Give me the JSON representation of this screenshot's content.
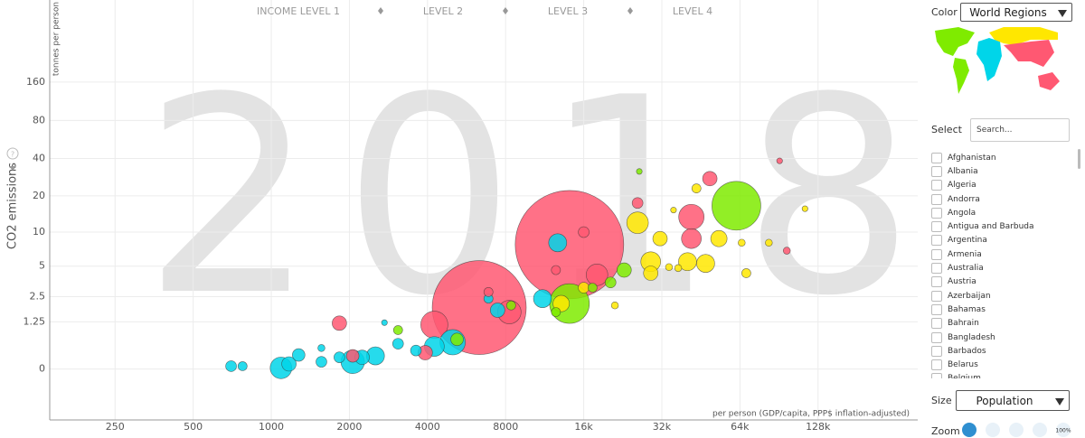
{
  "chart_data": {
    "type": "bubble",
    "time_label": "2018",
    "y_axis_title": "CO2 emissions",
    "y_axis_unit": "tonnes per person",
    "x_axis_title": "per person (GDP/capita, PPP$ inflation-adjusted)",
    "help_icon": "?",
    "income_levels": [
      "INCOME LEVEL 1",
      "LEVEL 2",
      "LEVEL 3",
      "LEVEL 4"
    ],
    "xscale": "log",
    "yscale": "symlog",
    "grid": true,
    "xlim": [
      140,
      310000
    ],
    "ylim": [
      -1.4,
      700
    ],
    "xticks": [
      250,
      500,
      1000,
      2000,
      4000,
      8000,
      {
        "value": 16000,
        "label": "16k"
      },
      {
        "value": 32000,
        "label": "32k"
      },
      {
        "value": 64000,
        "label": "64k"
      },
      {
        "value": 128000,
        "label": "128k"
      }
    ],
    "yticks": [
      0,
      1.25,
      2.5,
      5,
      10,
      20,
      40,
      80,
      160
    ],
    "series": [
      {
        "color": "#00d5e9",
        "x": [
          700,
          775,
          1090,
          1170,
          1275,
          1560,
          1560,
          1830,
          2060,
          2240,
          2520,
          3080,
          3610,
          4250,
          5000,
          7450,
          11100,
          12700,
          6870,
          2730
        ],
        "values": [
          0.05,
          0.05,
          0.02,
          0.09,
          0.27,
          0.43,
          0.13,
          0.22,
          0.13,
          0.22,
          0.25,
          0.54,
          0.37,
          0.47,
          0.58,
          1.76,
          2.38,
          8.1,
          2.38,
          1.22
        ],
        "sizes": [
          14,
          10,
          56,
          25,
          19,
          6,
          14,
          14,
          66,
          25,
          39,
          14,
          14,
          47,
          77,
          25,
          39,
          39,
          10,
          4
        ]
      },
      {
        "color": "#ff5872",
        "x": [
          1830,
          2060,
          4250,
          6330,
          14100,
          6870,
          8270,
          18000,
          12500,
          41600,
          41600,
          49000,
          91000,
          97000,
          25800,
          16000,
          3920
        ],
        "values": [
          1.2,
          0.25,
          1.14,
          1.89,
          7.8,
          2.8,
          1.67,
          4.15,
          4.6,
          13.4,
          8.8,
          27.6,
          38.3,
          6.9,
          17.5,
          10.0,
          0.32
        ],
        "sizes": [
          25,
          19,
          88,
          1056,
          1406,
          10,
          66,
          56,
          10,
          77,
          47,
          25,
          4,
          6,
          14,
          14,
          25
        ]
      },
      {
        "color": "#ffe700",
        "x": [
          25800,
          29000,
          31500,
          29000,
          40200,
          47200,
          53100,
          65000,
          67700,
          82700,
          34100,
          37000,
          43500,
          13100,
          16000,
          114000,
          35500,
          21100
        ],
        "values": [
          12,
          5.5,
          8.8,
          4.3,
          5.5,
          5.3,
          8.8,
          8.1,
          4.3,
          8.1,
          4.9,
          4.8,
          23,
          2.1,
          3.1,
          15.7,
          15.3,
          2.0
        ],
        "sizes": [
          56,
          47,
          25,
          25,
          39,
          39,
          32,
          6,
          10,
          6,
          6,
          6,
          10,
          32,
          14,
          4,
          4,
          6
        ]
      },
      {
        "color": "#7feb00",
        "x": [
          62000,
          14100,
          22900,
          20300,
          17300,
          26200,
          8400,
          12500,
          3080,
          5200
        ],
        "values": [
          16.6,
          2.1,
          4.6,
          3.5,
          3.1,
          31.5,
          2.0,
          1.67,
          0.95,
          0.66
        ],
        "sizes": [
          285,
          189,
          25,
          14,
          10,
          4,
          10,
          10,
          10,
          19
        ]
      }
    ]
  },
  "ui": {
    "color_label": "Color",
    "color_select": "World Regions",
    "select_label": "Select",
    "search_placeholder": "Search...",
    "countries": [
      "Afghanistan",
      "Albania",
      "Algeria",
      "Andorra",
      "Angola",
      "Antigua and Barbuda",
      "Argentina",
      "Armenia",
      "Australia",
      "Austria",
      "Azerbaijan",
      "Bahamas",
      "Bahrain",
      "Bangladesh",
      "Barbados",
      "Belarus",
      "Belgium"
    ],
    "size_label": "Size",
    "size_select": "Population",
    "zoom_label": "Zoom",
    "zoom_reset": "100%"
  }
}
